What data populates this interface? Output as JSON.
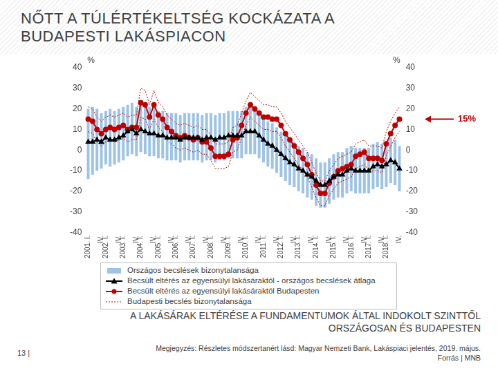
{
  "title": "NŐTT A TÚLÉRTÉKELTSÉG KOCKÁZATA A BUDAPESTI LAKÁSPIACON",
  "page_number": "13 |",
  "subtitle": "A LAKÁSÁRAK ELTÉRÉSE A FUNDAMENTUMOK ÁLTAL INDOKOLT SZINTTŐL ORSZÁGOSAN ÉS BUDAPESTEN",
  "note": "Megjegyzés: Részletes módszertanért lásd: Magyar Nemzeti Bank, Lakáspiaci jelentés, 2019. május.",
  "source": "Forrás | MNB",
  "chart_data": {
    "type": "line",
    "y_label": "%",
    "y2_label": "%",
    "ylim": [
      -40,
      40
    ],
    "yticks": [
      -40,
      -30,
      -20,
      -10,
      0,
      10,
      20,
      30,
      40
    ],
    "y2lim": [
      -40,
      40
    ],
    "y2ticks": [
      -40,
      -30,
      -20,
      -10,
      0,
      10,
      20,
      30,
      40
    ],
    "grid": false,
    "legend": "bottom",
    "annotations": [
      {
        "text": "15%",
        "value": 15,
        "axis": "y2",
        "color": "#c00000"
      }
    ],
    "categories": [
      "2001. I.",
      null,
      null,
      "IV.",
      "2002. I.",
      null,
      null,
      "IV.",
      "2003. I.",
      null,
      null,
      "IV.",
      "2004. I.",
      null,
      null,
      "IV.",
      "2005. I.",
      null,
      null,
      "IV.",
      "2006. I.",
      null,
      null,
      "IV.",
      "2007. I.",
      null,
      null,
      "IV.",
      "2008. I.",
      null,
      null,
      "IV.",
      "2009. I.",
      null,
      null,
      "IV.",
      "2010. I.",
      null,
      null,
      "IV.",
      "2011. I.",
      null,
      null,
      "IV.",
      "2012. I.",
      null,
      null,
      "IV.",
      "2013. I.",
      null,
      null,
      "IV.",
      "2014. I.",
      null,
      null,
      "IV.",
      "2015. I.",
      null,
      null,
      "IV.",
      "2016. I.",
      null,
      null,
      "IV.",
      "2017. I.",
      null,
      null,
      "IV.",
      "2018. I.",
      null,
      null,
      "IV."
    ],
    "series": [
      {
        "name": "Országos becslések bizonytalansága",
        "type": "bar",
        "color": "#9dc3e6",
        "values": [
          [
            -14,
            20
          ],
          [
            -12,
            21
          ],
          [
            -10,
            20
          ],
          [
            -9,
            18
          ],
          [
            -7,
            19
          ],
          [
            -8,
            20
          ],
          [
            -7,
            19
          ],
          [
            -6,
            20
          ],
          [
            -5,
            21
          ],
          [
            -3,
            22
          ],
          [
            -2,
            23
          ],
          [
            -3,
            21
          ],
          [
            -1,
            23
          ],
          [
            -2,
            22
          ],
          [
            -3,
            21
          ],
          [
            -3,
            21
          ],
          [
            -4,
            19
          ],
          [
            -4,
            19
          ],
          [
            -5,
            18
          ],
          [
            -5,
            18
          ],
          [
            -5,
            18
          ],
          [
            -6,
            17
          ],
          [
            -5,
            18
          ],
          [
            -5,
            18
          ],
          [
            -5,
            18
          ],
          [
            -5,
            18
          ],
          [
            -6,
            17
          ],
          [
            -5,
            18
          ],
          [
            -5,
            18
          ],
          [
            -6,
            17
          ],
          [
            -5,
            18
          ],
          [
            -5,
            18
          ],
          [
            -4,
            19
          ],
          [
            -4,
            19
          ],
          [
            -4,
            19
          ],
          [
            -4,
            19
          ],
          [
            -2,
            21
          ],
          [
            -2,
            21
          ],
          [
            -2,
            21
          ],
          [
            -4,
            19
          ],
          [
            -6,
            16
          ],
          [
            -8,
            14
          ],
          [
            -9,
            13
          ],
          [
            -11,
            11
          ],
          [
            -13,
            9
          ],
          [
            -15,
            7
          ],
          [
            -17,
            5
          ],
          [
            -18,
            4
          ],
          [
            -20,
            2
          ],
          [
            -21,
            1
          ],
          [
            -23,
            -1
          ],
          [
            -24,
            -2
          ],
          [
            -27,
            -4
          ],
          [
            -28,
            -6
          ],
          [
            -28,
            -6
          ],
          [
            -26,
            -4
          ],
          [
            -24,
            -2
          ],
          [
            -23,
            -1
          ],
          [
            -23,
            -1
          ],
          [
            -21,
            1
          ],
          [
            -20,
            2
          ],
          [
            -21,
            1
          ],
          [
            -21,
            1
          ],
          [
            -21,
            1
          ],
          [
            -21,
            1
          ],
          [
            -19,
            3
          ],
          [
            -18,
            4
          ],
          [
            -19,
            3
          ],
          [
            -18,
            4
          ],
          [
            -16,
            6
          ],
          [
            -17,
            5
          ],
          [
            -20,
            2
          ]
        ]
      },
      {
        "name": "Becsült eltérés az egyensúlyi lakásáraktól - országos becslések átlaga",
        "type": "line",
        "color": "#000000",
        "marker": "triangle",
        "line_style": "solid",
        "values": [
          4,
          4,
          5,
          4,
          6,
          5,
          5,
          6,
          7,
          9,
          10,
          8,
          10,
          9,
          8,
          8,
          7,
          7,
          6,
          6,
          6,
          5,
          6,
          6,
          6,
          6,
          5,
          6,
          6,
          5,
          6,
          6,
          7,
          7,
          7,
          7,
          9,
          9,
          9,
          7,
          5,
          3,
          2,
          0,
          -2,
          -4,
          -6,
          -7,
          -9,
          -10,
          -12,
          -13,
          -15,
          -17,
          -17,
          -15,
          -13,
          -12,
          -12,
          -10,
          -9,
          -10,
          -10,
          -10,
          -10,
          -8,
          -7,
          -8,
          -7,
          -5,
          -6,
          -9
        ]
      },
      {
        "name": "Becsült eltérés az egyensúlyi lakásáraktól Budapesten",
        "type": "line",
        "color": "#c00000",
        "marker": "circle",
        "line_style": "solid",
        "values": [
          15,
          14,
          10,
          8,
          10,
          11,
          10,
          11,
          12,
          10,
          11,
          11,
          23,
          22,
          16,
          22,
          17,
          15,
          11,
          9,
          7,
          6,
          7,
          6,
          5,
          6,
          4,
          4,
          1,
          -3,
          -3,
          -3,
          -2,
          5,
          6,
          12,
          18,
          22,
          20,
          18,
          16,
          16,
          15,
          15,
          12,
          8,
          5,
          2,
          -1,
          -4,
          -7,
          -12,
          -17,
          -21,
          -21,
          -16,
          -13,
          -10,
          -9,
          -8,
          -7,
          -3,
          -2,
          -1,
          -4,
          -4,
          -4,
          -5,
          3,
          8,
          12,
          15
        ]
      },
      {
        "name": "Budapesti becslés bizonytalansága",
        "type": "band",
        "color": "#c00000",
        "line_style": "dotted",
        "values": [
          [
            9,
            21
          ],
          [
            8,
            20
          ],
          [
            4,
            16
          ],
          [
            2,
            14
          ],
          [
            4,
            16
          ],
          [
            5,
            17
          ],
          [
            4,
            16
          ],
          [
            5,
            17
          ],
          [
            6,
            18
          ],
          [
            4,
            16
          ],
          [
            5,
            17
          ],
          [
            5,
            17
          ],
          [
            16,
            30
          ],
          [
            15,
            29
          ],
          [
            10,
            22
          ],
          [
            15,
            29
          ],
          [
            11,
            23
          ],
          [
            9,
            21
          ],
          [
            5,
            17
          ],
          [
            3,
            15
          ],
          [
            1,
            13
          ],
          [
            0,
            12
          ],
          [
            1,
            13
          ],
          [
            0,
            12
          ],
          [
            -1,
            11
          ],
          [
            0,
            12
          ],
          [
            -2,
            10
          ],
          [
            -2,
            10
          ],
          [
            -5,
            7
          ],
          [
            -9,
            3
          ],
          [
            -9,
            3
          ],
          [
            -9,
            3
          ],
          [
            -8,
            4
          ],
          [
            -1,
            11
          ],
          [
            0,
            12
          ],
          [
            6,
            18
          ],
          [
            12,
            24
          ],
          [
            16,
            28
          ],
          [
            14,
            26
          ],
          [
            12,
            24
          ],
          [
            10,
            22
          ],
          [
            10,
            22
          ],
          [
            9,
            21
          ],
          [
            9,
            21
          ],
          [
            6,
            18
          ],
          [
            2,
            14
          ],
          [
            -1,
            11
          ],
          [
            -4,
            8
          ],
          [
            -7,
            5
          ],
          [
            -10,
            2
          ],
          [
            -13,
            -1
          ],
          [
            -18,
            -6
          ],
          [
            -23,
            -11
          ],
          [
            -27,
            -15
          ],
          [
            -27,
            -15
          ],
          [
            -22,
            -10
          ],
          [
            -19,
            -7
          ],
          [
            -16,
            -4
          ],
          [
            -15,
            -3
          ],
          [
            -14,
            -2
          ],
          [
            -13,
            -1
          ],
          [
            -9,
            3
          ],
          [
            -8,
            4
          ],
          [
            -7,
            5
          ],
          [
            -10,
            2
          ],
          [
            -10,
            2
          ],
          [
            -10,
            2
          ],
          [
            -11,
            1
          ],
          [
            -3,
            9
          ],
          [
            2,
            14
          ],
          [
            6,
            18
          ],
          [
            9,
            21
          ]
        ]
      }
    ]
  }
}
